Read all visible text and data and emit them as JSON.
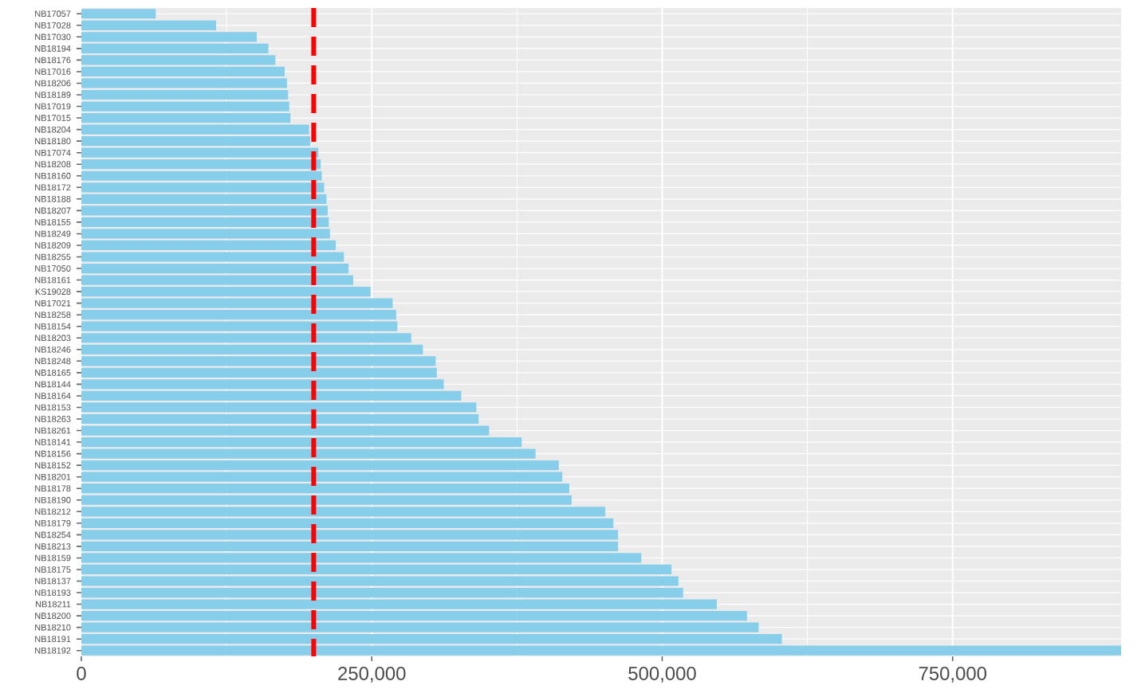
{
  "chart_data": {
    "type": "bar",
    "orientation": "horizontal",
    "color": "#87ceeb",
    "grid": true,
    "categories": [
      "NB17057",
      "NB17028",
      "NB17030",
      "NB18194",
      "NB18176",
      "NB17016",
      "NB18206",
      "NB18189",
      "NB17019",
      "NB17015",
      "NB18204",
      "NB18180",
      "NB17074",
      "NB18208",
      "NB18160",
      "NB18172",
      "NB18188",
      "NB18207",
      "NB18155",
      "NB18249",
      "NB18209",
      "NB18255",
      "NB17050",
      "NB18161",
      "KS19028",
      "NB17021",
      "NB18258",
      "NB18154",
      "NB18203",
      "NB18246",
      "NB18248",
      "NB18165",
      "NB18144",
      "NB18164",
      "NB18153",
      "NB18263",
      "NB18261",
      "NB18141",
      "NB18156",
      "NB18152",
      "NB18201",
      "NB18178",
      "NB18190",
      "NB18212",
      "NB18179",
      "NB18254",
      "NB18213",
      "NB18159",
      "NB18175",
      "NB18137",
      "NB18193",
      "NB18211",
      "NB18200",
      "NB18210",
      "NB18191",
      "NB18192"
    ],
    "values": [
      64000,
      116000,
      151000,
      161000,
      167000,
      175000,
      177000,
      178000,
      179000,
      180000,
      196000,
      197000,
      204000,
      206000,
      207000,
      209000,
      211000,
      212000,
      213000,
      214000,
      219000,
      226000,
      230000,
      234000,
      249000,
      268000,
      271000,
      272000,
      284000,
      294000,
      305000,
      306000,
      312000,
      327000,
      340000,
      342000,
      351000,
      379000,
      391000,
      411000,
      414000,
      420000,
      422000,
      451000,
      458000,
      462000,
      462000,
      482000,
      508000,
      514000,
      518000,
      547000,
      573000,
      583000,
      603000,
      895000
    ],
    "xlim": [
      0,
      895000
    ],
    "xticks": [
      {
        "value": 0,
        "label": "0"
      },
      {
        "value": 250000,
        "label": "250,000"
      },
      {
        "value": 500000,
        "label": "500,000"
      },
      {
        "value": 750000,
        "label": "750,000"
      }
    ],
    "ref_lines": [
      {
        "axis": "x",
        "value": 200000,
        "color": "#ff0000",
        "line_style": "dashed"
      }
    ]
  }
}
